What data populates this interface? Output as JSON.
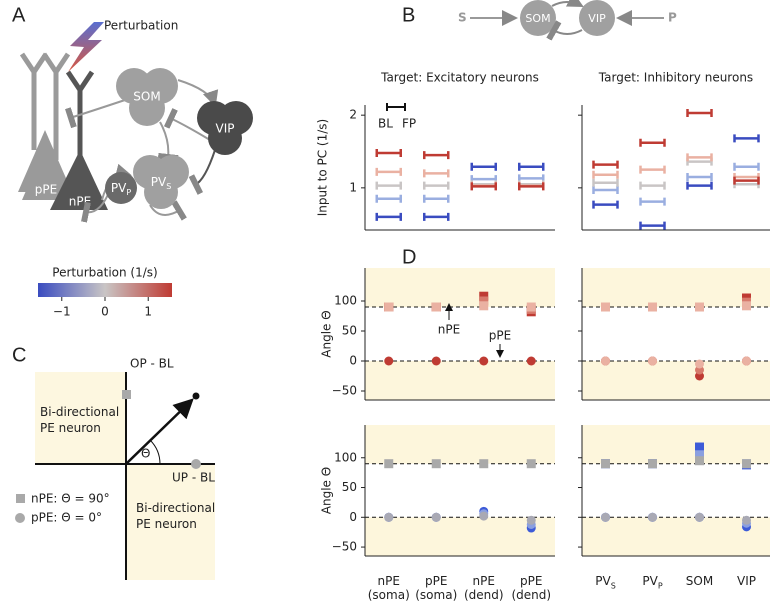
{
  "panel_labels": [
    "A",
    "B",
    "C",
    "D"
  ],
  "panel_a": {
    "perturbation_label": "Perturbation",
    "cells": {
      "som": "SOM",
      "vip": "VIP",
      "pvs": "PV",
      "pvs_sub": "S",
      "pvp": "PV",
      "pvp_sub": "P",
      "ppe": "pPE",
      "npe": "nPE"
    },
    "colorbar": {
      "label": "Perturbation (1/s)",
      "lim": [
        -1.55,
        1.55
      ],
      "ticks": [
        {
          "value": -1,
          "label": "−1"
        },
        0,
        1
      ],
      "colors": [
        "#3a4cc0",
        "#c9c5c5",
        "#bf3b33"
      ]
    }
  },
  "panel_b_diagram": {
    "s": "S",
    "som": "SOM",
    "vip": "VIP",
    "p": "P"
  },
  "panel_c": {
    "y_axis": "OP - BL",
    "x_axis": "UP - BL",
    "quadrant_text": [
      "Bi-directional",
      "PE neuron"
    ],
    "angle": "Θ",
    "legend": [
      "nPE: Θ = 90°",
      "pPE: Θ = 0°"
    ]
  },
  "chart_data": [
    {
      "type": "segment",
      "title": "Target: Excitatory neurons",
      "ylabel": "Input to PC (1/s)",
      "ylim": [
        0.42,
        2.14
      ],
      "yticks": [
        1,
        2
      ],
      "annotation": {
        "bl": "BL",
        "fp": "FP"
      },
      "series": [
        {
          "color": "#3a4cc0",
          "values": [
            0.6,
            0.6,
            1.29,
            1.29
          ]
        },
        {
          "color": "#9aaee0",
          "values": [
            0.85,
            0.85,
            1.12,
            1.13
          ]
        },
        {
          "color": "#c9c5c5",
          "values": [
            1.03,
            1.03,
            1.05,
            1.05
          ]
        },
        {
          "color": "#eab1a2",
          "values": [
            1.22,
            1.2,
            1.03,
            1.03
          ]
        },
        {
          "color": "#bf3b33",
          "values": [
            1.48,
            1.45,
            1.02,
            1.02
          ]
        }
      ]
    },
    {
      "type": "segment",
      "title": "Target: Inhibitory neurons",
      "ylim": [
        0.42,
        2.14
      ],
      "yticks": [
        1,
        2
      ],
      "series": [
        {
          "color": "#3a4cc0",
          "values": [
            0.77,
            0.48,
            1.03,
            1.68
          ]
        },
        {
          "color": "#9aaee0",
          "values": [
            0.97,
            0.81,
            1.15,
            1.29
          ]
        },
        {
          "color": "#c9c5c5",
          "values": [
            1.07,
            1.03,
            1.36,
            1.05
          ]
        },
        {
          "color": "#eab1a2",
          "values": [
            1.18,
            1.25,
            1.42,
            1.15
          ]
        },
        {
          "color": "#bf3b33",
          "values": [
            1.32,
            1.62,
            2.03,
            1.1
          ]
        }
      ]
    },
    {
      "type": "dot",
      "ylabel": "Angle Θ",
      "ylim": [
        -65,
        155
      ],
      "yticks": [
        {
          "value": -50,
          "label": "−50"
        },
        0,
        50,
        100
      ],
      "ref_lines": [
        0,
        90
      ],
      "annotations": [
        "nPE",
        "pPE"
      ],
      "series": [
        {
          "color": "#bf3b33",
          "marker": "square",
          "values": [
            90,
            90,
            108,
            82
          ]
        },
        {
          "color": "#d77a6c",
          "marker": "square",
          "values": [
            90,
            90,
            100,
            86
          ]
        },
        {
          "color": "#eab1a2",
          "marker": "square",
          "values": [
            90,
            90,
            92,
            90
          ]
        },
        {
          "color": "#bf3b33",
          "marker": "circle",
          "values": [
            0,
            0,
            0,
            0
          ]
        }
      ]
    },
    {
      "type": "dot",
      "ylim": [
        -65,
        155
      ],
      "yticks": [
        {
          "value": -50,
          "label": "−50"
        },
        0,
        50,
        100
      ],
      "ref_lines": [
        0,
        90
      ],
      "series": [
        {
          "color": "#bf3b33",
          "marker": "square",
          "values": [
            90,
            90,
            90,
            105
          ]
        },
        {
          "color": "#d77a6c",
          "marker": "square",
          "values": [
            90,
            90,
            90,
            98
          ]
        },
        {
          "color": "#eab1a2",
          "marker": "square",
          "values": [
            90,
            90,
            90,
            92
          ]
        },
        {
          "color": "#bf3b33",
          "marker": "circle",
          "values": [
            0,
            0,
            -25,
            0
          ]
        },
        {
          "color": "#d77a6c",
          "marker": "circle",
          "values": [
            0,
            0,
            -15,
            0
          ]
        },
        {
          "color": "#eab1a2",
          "marker": "circle",
          "values": [
            0,
            0,
            -5,
            0
          ]
        }
      ]
    },
    {
      "type": "dot",
      "ylabel": "Angle Θ",
      "ylim": [
        -65,
        155
      ],
      "yticks": [
        {
          "value": -50,
          "label": "−50"
        },
        0,
        50,
        100
      ],
      "ref_lines": [
        0,
        90
      ],
      "categories": [
        {
          "label": "nPE (soma)"
        },
        {
          "label": "pPE (soma)"
        },
        {
          "label": "nPE (dend)"
        },
        {
          "label": "pPE (dend)"
        }
      ],
      "series": [
        {
          "color": "#a9a9a9",
          "marker": "square",
          "values": [
            90,
            90,
            90,
            90
          ]
        },
        {
          "color": "#3d5bd8",
          "marker": "circle",
          "values": [
            0,
            0,
            10,
            -18
          ]
        },
        {
          "color": "#8a9fe0",
          "marker": "circle",
          "values": [
            0,
            0,
            6,
            -12
          ]
        },
        {
          "color": "#a9a9b4",
          "marker": "circle",
          "values": [
            0,
            0,
            2,
            -5
          ]
        }
      ]
    },
    {
      "type": "dot",
      "ylim": [
        -65,
        155
      ],
      "yticks": [
        {
          "value": -50,
          "label": "−50"
        },
        0,
        50,
        100
      ],
      "ref_lines": [
        0,
        90
      ],
      "categories": [
        {
          "label": "PV",
          "sub": "S"
        },
        {
          "label": "PV",
          "sub": "P"
        },
        {
          "label": "SOM"
        },
        {
          "label": "VIP"
        }
      ],
      "series": [
        {
          "color": "#3d5bd8",
          "marker": "square",
          "values": [
            90,
            90,
            118,
            88
          ]
        },
        {
          "color": "#8a9fe0",
          "marker": "square",
          "values": [
            90,
            90,
            105,
            90
          ]
        },
        {
          "color": "#a9a9a9",
          "marker": "square",
          "values": [
            90,
            90,
            95,
            90
          ]
        },
        {
          "color": "#3d5bd8",
          "marker": "circle",
          "values": [
            0,
            0,
            0,
            -16
          ]
        },
        {
          "color": "#8a9fe0",
          "marker": "circle",
          "values": [
            0,
            0,
            0,
            -10
          ]
        },
        {
          "color": "#a9a9b4",
          "marker": "circle",
          "values": [
            0,
            0,
            0,
            -5
          ]
        }
      ]
    }
  ]
}
